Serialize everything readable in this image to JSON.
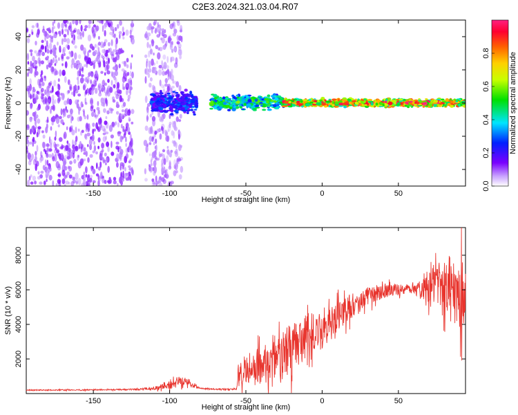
{
  "title": "C2E3.2024.321.03.04.R07",
  "colors": {
    "snr_line": "#e8352e",
    "axis": "#000000",
    "background": "#ffffff"
  },
  "chart_data": [
    {
      "type": "heatmap",
      "xlabel": "Height of straight line (km)",
      "ylabel": "Frequency (Hz)",
      "xlim": [
        -194,
        94
      ],
      "ylim": [
        -50,
        50
      ],
      "xticks": [
        -150,
        -100,
        -50,
        0,
        50
      ],
      "yticks": [
        -40,
        -20,
        0,
        20,
        40
      ],
      "colorbar": {
        "label": "Normalized spectral amplitude",
        "range": [
          0,
          1
        ],
        "ticks": [
          0.0,
          0.2,
          0.4,
          0.6,
          0.8
        ],
        "colormap": "rainbow (violet-blue-cyan-green-yellow-red-magenta)"
      },
      "regions": [
        {
          "x": [
            -194,
            -124
          ],
          "description": "scattered noise, amplitude ~0.1",
          "freq_range": [
            -50,
            50
          ],
          "amplitude": 0.1
        },
        {
          "x": [
            -116,
            -92
          ],
          "description": "noise band",
          "freq_range": [
            -50,
            50
          ],
          "amplitude": 0.08
        },
        {
          "x": [
            -112,
            -82
          ],
          "description": "weak signal near 0 Hz",
          "freq_range": [
            -8,
            8
          ],
          "amplitude": 0.25
        },
        {
          "x": [
            -73,
            -25
          ],
          "description": "signal near 0 Hz",
          "freq_range": [
            -5,
            6
          ],
          "amplitude": 0.45
        },
        {
          "x": [
            -25,
            94
          ],
          "description": "strong narrow line near 0 Hz",
          "freq_range": [
            -3,
            3
          ],
          "amplitude": 0.75
        },
        {
          "x": [
            55,
            68
          ],
          "description": "peak amplitude near 0 Hz",
          "freq_range": [
            -1,
            1
          ],
          "amplitude": 0.95
        }
      ],
      "grid": false
    },
    {
      "type": "line",
      "xlabel": "Height of straight line (km)",
      "ylabel": "SNR (10 * v/v)",
      "xlim": [
        -194,
        94
      ],
      "ylim": [
        0,
        9600
      ],
      "xticks": [
        -150,
        -100,
        -50,
        0,
        50
      ],
      "yticks": [
        2000,
        4000,
        6000,
        8000
      ],
      "series": [
        {
          "x": [
            -194,
            -180,
            -160,
            -140,
            -120,
            -110,
            -100,
            -95,
            -90,
            -85,
            -80,
            -70,
            -60,
            -56,
            -55,
            -50,
            -45,
            -40,
            -35,
            -30,
            -25,
            -20,
            -15,
            -10,
            -5,
            0,
            5,
            10,
            15,
            20,
            25,
            30,
            35,
            40,
            45,
            50,
            55,
            60,
            65,
            70,
            75,
            80,
            85,
            90,
            94
          ],
          "y": [
            200,
            200,
            210,
            220,
            240,
            300,
            480,
            700,
            800,
            500,
            300,
            250,
            240,
            280,
            1200,
            1400,
            1500,
            1700,
            1600,
            1900,
            2200,
            2600,
            3000,
            3400,
            3500,
            3600,
            4000,
            4500,
            4800,
            5100,
            5300,
            5600,
            5800,
            5900,
            6000,
            6000,
            6100,
            6100,
            6000,
            6200,
            6300,
            6400,
            6200,
            6000,
            5800
          ],
          "spread": [
            40,
            40,
            40,
            40,
            60,
            120,
            300,
            400,
            350,
            200,
            60,
            50,
            50,
            60,
            900,
            1100,
            1300,
            1500,
            1500,
            1600,
            1800,
            1900,
            1700,
            1500,
            1400,
            1300,
            1200,
            1100,
            1000,
            900,
            800,
            700,
            600,
            500,
            450,
            420,
            400,
            420,
            700,
            1200,
            1600,
            2000,
            2400,
            2800,
            3000
          ]
        }
      ],
      "grid": false
    }
  ]
}
